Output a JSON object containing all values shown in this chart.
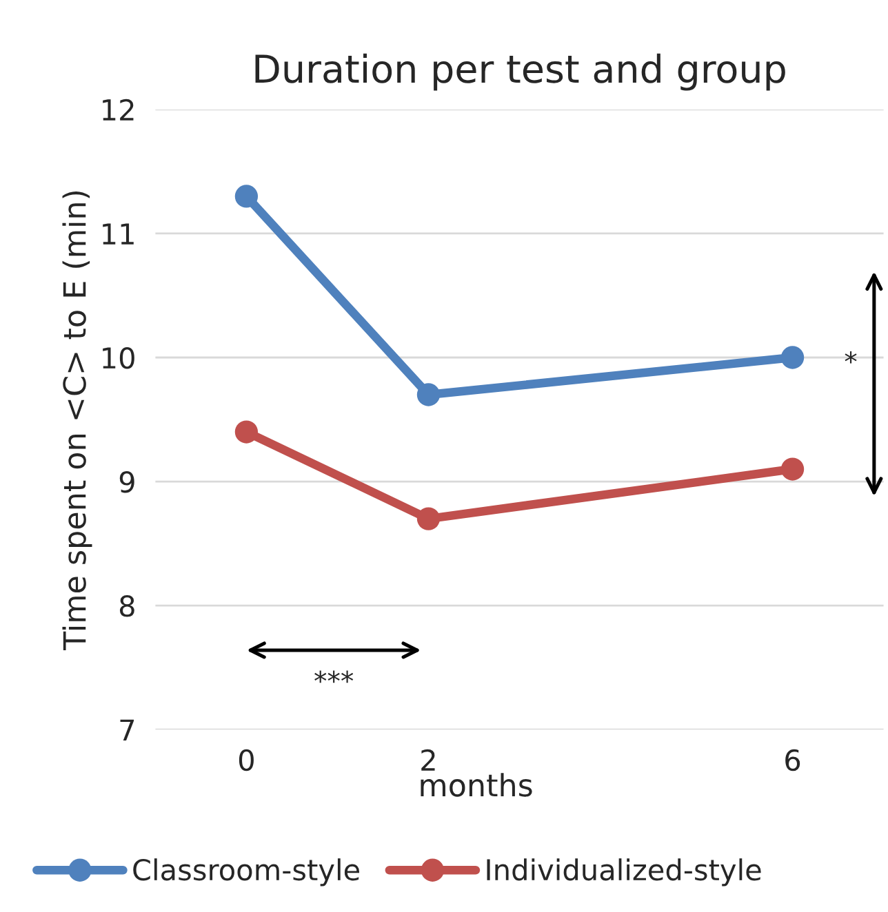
{
  "chart_data": {
    "type": "line",
    "title": "Duration per test and group",
    "xlabel": "months",
    "ylabel": "Time spent on <C> to E (min)",
    "x": [
      0,
      2,
      6
    ],
    "series": [
      {
        "name": "Classroom-style",
        "color": "#4f81bd",
        "values": [
          11.3,
          9.7,
          10.0
        ]
      },
      {
        "name": "Individualized-style",
        "color": "#c0504d",
        "values": [
          9.4,
          8.7,
          9.1
        ]
      }
    ],
    "xlim": [
      -1,
      7
    ],
    "xticks": [
      0,
      2,
      6
    ],
    "ylim": [
      7,
      12
    ],
    "yticks": [
      7,
      8,
      9,
      10,
      11,
      12
    ],
    "grid": "y",
    "legend": "bottom",
    "marker": "circle",
    "line_style": "solid",
    "annotations": [
      "***",
      "*"
    ]
  }
}
